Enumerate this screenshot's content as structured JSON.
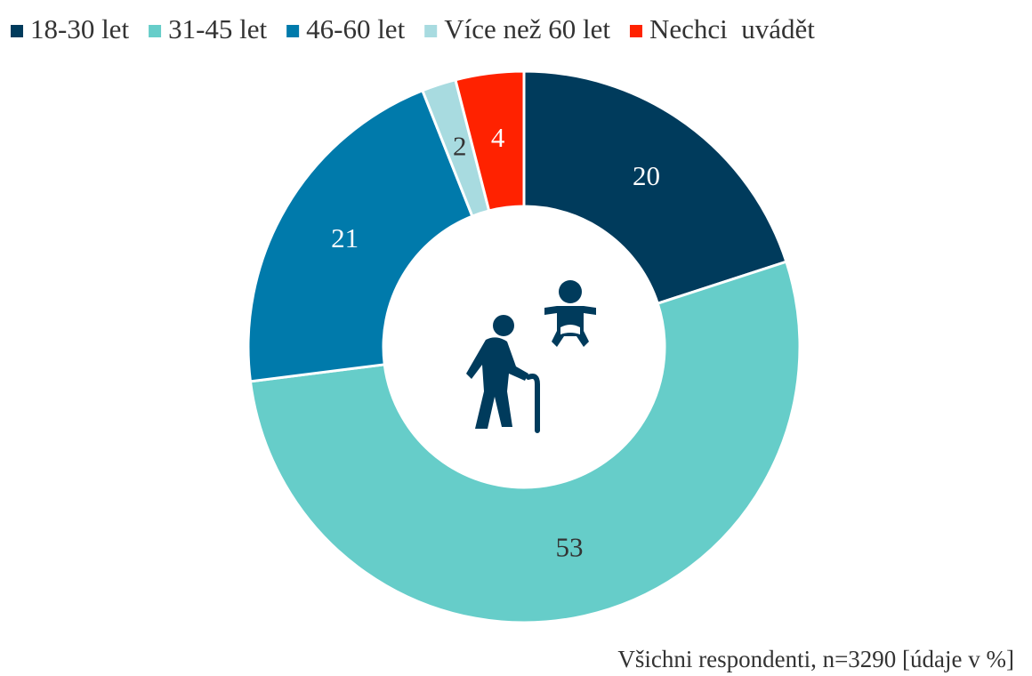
{
  "chart_data": {
    "type": "donut",
    "categories": [
      "18-30 let",
      "31-45 let",
      "46-60 let",
      "Více než 60 let",
      "Nechci  uvádět"
    ],
    "values": [
      20,
      53,
      21,
      2,
      4
    ],
    "colors": [
      "#003b5c",
      "#66cdc9",
      "#007aab",
      "#a8dbe0",
      "#ff2200"
    ],
    "legend": "top",
    "note": "Všichni respondenti, n=3290 [údaje v %]"
  }
}
